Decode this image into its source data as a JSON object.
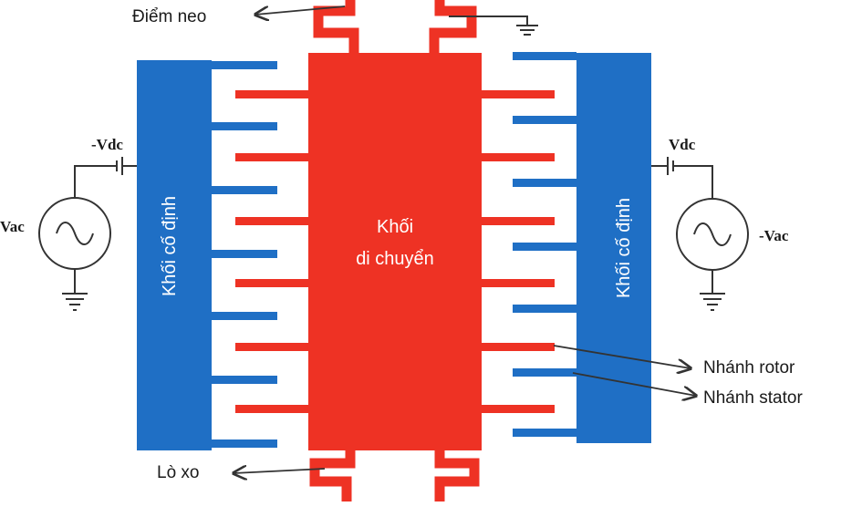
{
  "labels": {
    "anchor": "Điểm neo",
    "spring": "Lò xo",
    "rotor_finger": "Nhánh rotor",
    "stator_finger": "Nhánh stator",
    "moving_mass_line1": "Khối",
    "moving_mass_line2": "di chuyển",
    "fixed_mass_left": "Khối cố định",
    "fixed_mass_right": "Khối cố định",
    "vdc_left": "-Vdc",
    "vdc_right": "Vdc",
    "vac_left": "Vac",
    "vac_right": "-Vac"
  },
  "colors": {
    "rotor": "#ee3224",
    "stator": "#1f6fc5",
    "wire": "#333333",
    "text": "#1a1a1a"
  }
}
